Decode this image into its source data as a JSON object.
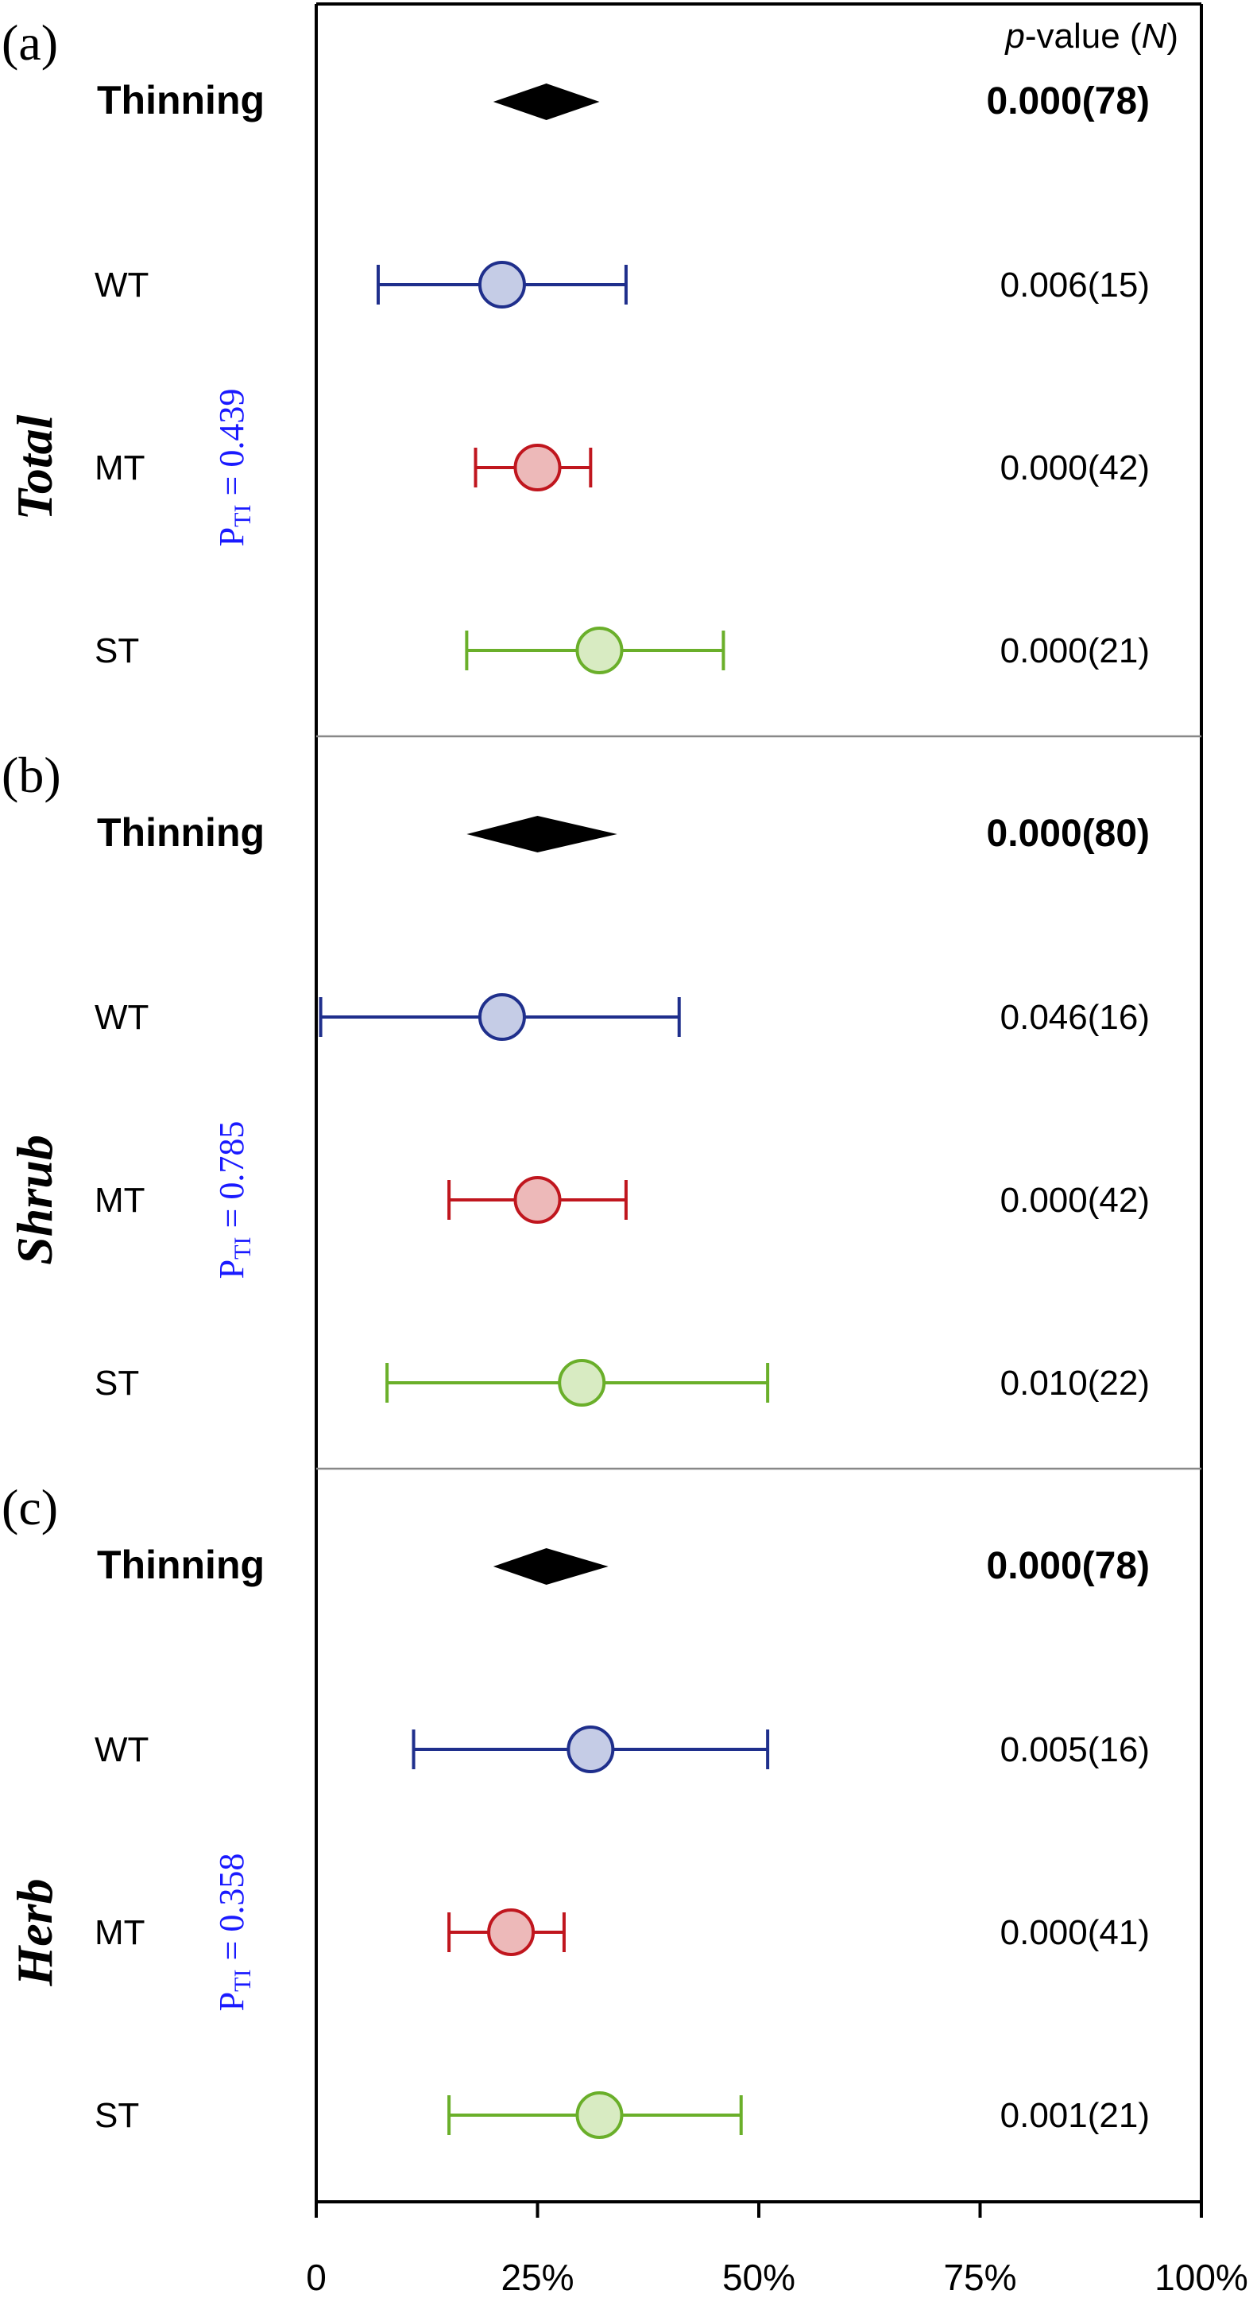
{
  "pvalue_header": {
    "prefix": "p",
    "middle": "-value (",
    "n": "N",
    "suffix": ")"
  },
  "colors": {
    "WT": "#1f2f8c",
    "MT": "#c0161e",
    "ST": "#6aaf2a",
    "wt_fill": "#c5cce6",
    "mt_fill": "#edb9b9",
    "st_fill": "#d8ebc2",
    "summary": "#000000",
    "p_ti_label": "#1a1aff"
  },
  "chart_data": {
    "type": "forest",
    "xlim": [
      0,
      100
    ],
    "x_unit": "%",
    "x_ticks": [
      "0",
      "25%",
      "50%",
      "75%",
      "100%"
    ],
    "panels": [
      {
        "tag": "(a)",
        "title": "Total",
        "p_ti": "P",
        "p_ti_sub": "TI",
        "p_ti_value": " = 0.439",
        "rows": [
          {
            "label": "Thinning",
            "kind": "summary",
            "mean": 26,
            "lo": 20,
            "hi": 32,
            "pvalue": "0.000(78)"
          },
          {
            "label": "WT",
            "group": "WT",
            "mean": 21,
            "lo": 7,
            "hi": 35,
            "pvalue": "0.006(15)"
          },
          {
            "label": "MT",
            "group": "MT",
            "mean": 25,
            "lo": 18,
            "hi": 31,
            "pvalue": "0.000(42)"
          },
          {
            "label": "ST",
            "group": "ST",
            "mean": 32,
            "lo": 17,
            "hi": 46,
            "pvalue": "0.000(21)"
          }
        ]
      },
      {
        "tag": "(b)",
        "title": "Shrub",
        "p_ti": "P",
        "p_ti_sub": "TI",
        "p_ti_value": " = 0.785",
        "rows": [
          {
            "label": "Thinning",
            "kind": "summary",
            "mean": 25,
            "lo": 17,
            "hi": 34,
            "pvalue": "0.000(80)"
          },
          {
            "label": "WT",
            "group": "WT",
            "mean": 21,
            "lo": 0.5,
            "hi": 41,
            "pvalue": "0.046(16)"
          },
          {
            "label": "MT",
            "group": "MT",
            "mean": 25,
            "lo": 15,
            "hi": 35,
            "pvalue": "0.000(42)"
          },
          {
            "label": "ST",
            "group": "ST",
            "mean": 30,
            "lo": 8,
            "hi": 51,
            "pvalue": "0.010(22)"
          }
        ]
      },
      {
        "tag": "(c)",
        "title": "Herb",
        "p_ti": "P",
        "p_ti_sub": "TI",
        "p_ti_value": " = 0.358",
        "rows": [
          {
            "label": "Thinning",
            "kind": "summary",
            "mean": 26,
            "lo": 20,
            "hi": 33,
            "pvalue": "0.000(78)"
          },
          {
            "label": "WT",
            "group": "WT",
            "mean": 31,
            "lo": 11,
            "hi": 51,
            "pvalue": "0.005(16)"
          },
          {
            "label": "MT",
            "group": "MT",
            "mean": 22,
            "lo": 15,
            "hi": 28,
            "pvalue": "0.000(41)"
          },
          {
            "label": "ST",
            "group": "ST",
            "mean": 32,
            "lo": 15,
            "hi": 48,
            "pvalue": "0.001(21)"
          }
        ]
      }
    ]
  }
}
